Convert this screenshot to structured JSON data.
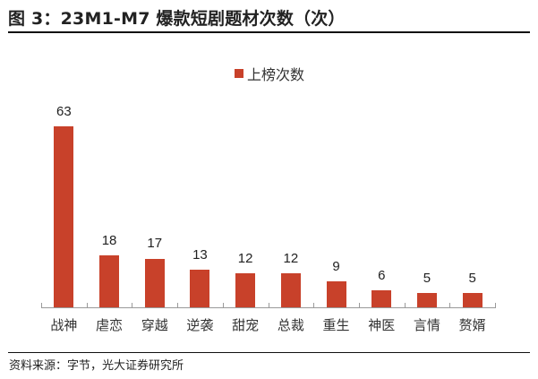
{
  "header": {
    "title": "图 3：23M1-M7 爆款短剧题材次数（次）"
  },
  "footer": {
    "source": "资料来源：字节，光大证券研究所"
  },
  "colors": {
    "bar": "#C8412A",
    "axis": "#9a9a9a"
  },
  "legend": {
    "label": "上榜次数"
  },
  "chart_data": {
    "type": "bar",
    "title": "图 3：23M1-M7 爆款短剧题材次数（次）",
    "xlabel": "",
    "ylabel": "",
    "categories": [
      "战神",
      "虐恋",
      "穿越",
      "逆袭",
      "甜宠",
      "总裁",
      "重生",
      "神医",
      "言情",
      "赘婿"
    ],
    "series": [
      {
        "name": "上榜次数",
        "values": [
          63,
          18,
          17,
          13,
          12,
          12,
          9,
          6,
          5,
          5
        ]
      }
    ],
    "ylim": [
      0,
      70
    ],
    "grid": false,
    "legend_position": "top",
    "data_labels": true
  }
}
